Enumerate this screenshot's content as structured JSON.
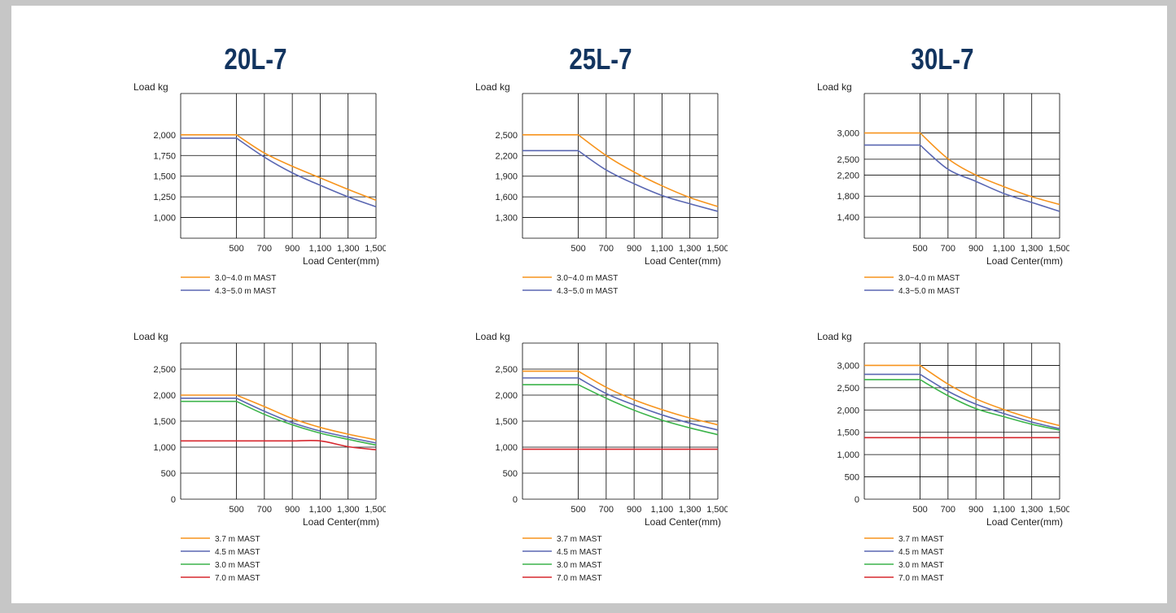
{
  "titles": [
    "20L-7",
    "25L-7",
    "30L-7"
  ],
  "colors": {
    "orange": "#f7941d",
    "blue": "#5a67b2",
    "green": "#3cb44b",
    "red": "#d7282f"
  },
  "chart_data": [
    {
      "type": "line",
      "title": "20L-7",
      "ylabel": "Load  kg",
      "xlabel": "Load Center(mm)",
      "x_ticks": [
        "500",
        "700",
        "900",
        "1,100",
        "1,300",
        "1,500"
      ],
      "y_ticks": [
        "2,000",
        "1,750",
        "1,500",
        "1,250",
        "1,000"
      ],
      "ylim": [
        750,
        2500
      ],
      "x": [
        500,
        700,
        900,
        1100,
        1300,
        1500
      ],
      "series": [
        {
          "name": "3.0~4.0 m MAST",
          "color": "orange",
          "values": [
            2000,
            1780,
            1620,
            1480,
            1340,
            1210
          ]
        },
        {
          "name": "4.3~5.0 m MAST",
          "color": "blue",
          "values": [
            1960,
            1730,
            1540,
            1390,
            1250,
            1130
          ]
        }
      ]
    },
    {
      "type": "line",
      "title": "25L-7",
      "ylabel": "Load  kg",
      "xlabel": "Load Center(mm)",
      "x_ticks": [
        "500",
        "700",
        "900",
        "1,100",
        "1,300",
        "1,500"
      ],
      "y_ticks": [
        "2,500",
        "2,200",
        "1,900",
        "1,600",
        "1,300"
      ],
      "y_tick_values": [
        2500,
        2200,
        1900,
        1600,
        1300
      ],
      "ylim": [
        1000,
        3100
      ],
      "x": [
        500,
        700,
        900,
        1100,
        1300,
        1500
      ],
      "series": [
        {
          "name": "3.0~4.0 m MAST",
          "color": "orange",
          "values": [
            2500,
            2200,
            1960,
            1760,
            1590,
            1460
          ]
        },
        {
          "name": "4.3~5.0 m MAST",
          "color": "blue",
          "values": [
            2270,
            1990,
            1790,
            1620,
            1500,
            1390
          ]
        }
      ]
    },
    {
      "type": "line",
      "title": "30L-7",
      "ylabel": "Load  kg",
      "xlabel": "Load Center(mm)",
      "x_ticks": [
        "500",
        "700",
        "900",
        "1,100",
        "1,300",
        "1,500"
      ],
      "y_ticks": [
        "3,000",
        "2,500",
        "2,200",
        "1,800",
        "1,400"
      ],
      "y_tick_values": [
        3000,
        2500,
        2200,
        1800,
        1400
      ],
      "ylim": [
        1000,
        3750
      ],
      "x": [
        500,
        700,
        900,
        1100,
        1300,
        1500
      ],
      "series": [
        {
          "name": "3.0~4.0 m MAST",
          "color": "orange",
          "values": [
            3000,
            2510,
            2200,
            1980,
            1790,
            1640
          ]
        },
        {
          "name": "4.3~5.0 m MAST",
          "color": "blue",
          "values": [
            2770,
            2310,
            2080,
            1850,
            1680,
            1510
          ]
        }
      ]
    },
    {
      "type": "line",
      "title": "20L-7",
      "ylabel": "Load  kg",
      "xlabel": "Load Center(mm)",
      "x_ticks": [
        "500",
        "700",
        "900",
        "1,100",
        "1,300",
        "1,500"
      ],
      "y_ticks": [
        "2,500",
        "2,000",
        "1,500",
        "1,000",
        "500",
        "0"
      ],
      "ylim": [
        0,
        3000
      ],
      "x": [
        500,
        700,
        900,
        1100,
        1300,
        1500
      ],
      "series": [
        {
          "name": "3.7 m MAST",
          "color": "orange",
          "values": [
            2000,
            1780,
            1550,
            1380,
            1250,
            1140
          ]
        },
        {
          "name": "4.5 m MAST",
          "color": "blue",
          "values": [
            1940,
            1690,
            1470,
            1310,
            1190,
            1080
          ]
        },
        {
          "name": "3.0 m MAST",
          "color": "green",
          "values": [
            1880,
            1630,
            1430,
            1270,
            1150,
            1040
          ]
        },
        {
          "name": "7.0 m MAST",
          "color": "red",
          "values": [
            1120,
            1120,
            1120,
            1120,
            1010,
            950
          ]
        }
      ]
    },
    {
      "type": "line",
      "title": "25L-7",
      "ylabel": "Load  kg",
      "xlabel": "Load Center(mm)",
      "x_ticks": [
        "500",
        "700",
        "900",
        "1,100",
        "1,300",
        "1,500"
      ],
      "y_ticks": [
        "2,500",
        "2,000",
        "1,500",
        "1,000",
        "500",
        "0"
      ],
      "ylim": [
        0,
        3000
      ],
      "x": [
        500,
        700,
        900,
        1100,
        1300,
        1500
      ],
      "series": [
        {
          "name": "3.7 m MAST",
          "color": "orange",
          "values": [
            2460,
            2150,
            1910,
            1720,
            1560,
            1430
          ]
        },
        {
          "name": "4.5 m MAST",
          "color": "blue",
          "values": [
            2330,
            2030,
            1810,
            1620,
            1460,
            1330
          ]
        },
        {
          "name": "3.0 m MAST",
          "color": "green",
          "values": [
            2200,
            1940,
            1710,
            1520,
            1370,
            1240
          ]
        },
        {
          "name": "7.0 m MAST",
          "color": "red",
          "values": [
            960,
            960,
            960,
            960,
            960,
            960
          ]
        }
      ]
    },
    {
      "type": "line",
      "title": "30L-7",
      "ylabel": "Load  kg",
      "xlabel": "Load Center(mm)",
      "x_ticks": [
        "500",
        "700",
        "900",
        "1,100",
        "1,300",
        "1,500"
      ],
      "y_ticks": [
        "3,000",
        "2,500",
        "2,000",
        "1,500",
        "1,000",
        "500",
        "0"
      ],
      "ylim": [
        0,
        3500
      ],
      "x": [
        500,
        700,
        900,
        1100,
        1300,
        1500
      ],
      "series": [
        {
          "name": "3.7 m MAST",
          "color": "orange",
          "values": [
            3000,
            2580,
            2250,
            2010,
            1810,
            1650
          ]
        },
        {
          "name": "4.5 m MAST",
          "color": "blue",
          "values": [
            2800,
            2420,
            2130,
            1920,
            1730,
            1580
          ]
        },
        {
          "name": "3.0 m MAST",
          "color": "green",
          "values": [
            2680,
            2320,
            2030,
            1850,
            1680,
            1550
          ]
        },
        {
          "name": "7.0 m MAST",
          "color": "red",
          "values": [
            1380,
            1380,
            1380,
            1380,
            1380,
            1380
          ]
        }
      ]
    }
  ]
}
